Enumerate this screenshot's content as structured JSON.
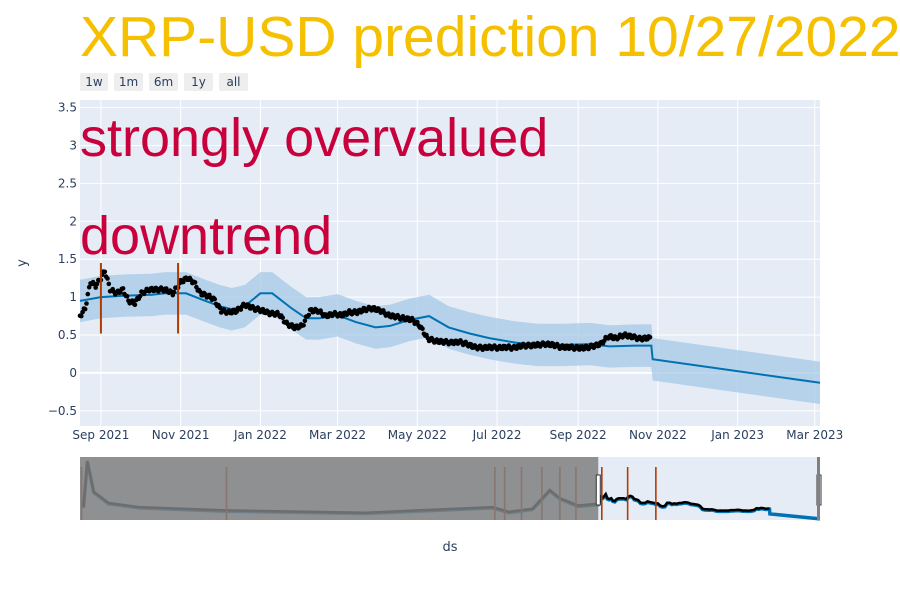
{
  "title": "XRP-USD prediction 10/27/2022",
  "annotations": [
    "strongly overvalued",
    "downtrend"
  ],
  "range_selector": [
    "1w",
    "1m",
    "6m",
    "1y",
    "all"
  ],
  "colors": {
    "title": "#f5c000",
    "annotation": "#c8003c",
    "plot_bg": "#e5ecf6",
    "band": "#a6c8e6",
    "forecast": "#0072b2",
    "actual": "#000000",
    "changepoint": "#b23c00",
    "rangeslider_mask": "#808080"
  },
  "chart_data": {
    "type": "line",
    "title": "XRP-USD prediction 10/27/2022",
    "xlabel": "ds",
    "ylabel": "y",
    "x_range": [
      "2021-08-16",
      "2023-03-05"
    ],
    "ylim": [
      -0.7,
      3.6
    ],
    "x_ticks": [
      {
        "date": "2021-09-01",
        "label": "Sep 2021"
      },
      {
        "date": "2021-11-01",
        "label": "Nov 2021"
      },
      {
        "date": "2022-01-01",
        "label": "Jan 2022"
      },
      {
        "date": "2022-03-01",
        "label": "Mar 2022"
      },
      {
        "date": "2022-05-01",
        "label": "May 2022"
      },
      {
        "date": "2022-07-01",
        "label": "Jul 2022"
      },
      {
        "date": "2022-09-01",
        "label": "Sep 2022"
      },
      {
        "date": "2022-11-01",
        "label": "Nov 2022"
      },
      {
        "date": "2023-01-01",
        "label": "Jan 2023"
      },
      {
        "date": "2023-03-01",
        "label": "Mar 2023"
      }
    ],
    "y_ticks": [
      {
        "value": 3.5,
        "label": "3.5"
      },
      {
        "value": 3,
        "label": "3"
      },
      {
        "value": 2.5,
        "label": "2.5"
      },
      {
        "value": 2,
        "label": "2"
      },
      {
        "value": 1.5,
        "label": "1.5"
      },
      {
        "value": 1,
        "label": "1"
      },
      {
        "value": 0.5,
        "label": "0.5"
      },
      {
        "value": 0,
        "label": "0"
      },
      {
        "value": -0.5,
        "label": "−0.5"
      }
    ],
    "changepoints": [
      "2021-09-01",
      "2021-10-30"
    ],
    "rangeslider_changepoints": [
      "2018-01-05",
      "2019-01-10",
      "2020-11-25",
      "2020-12-20",
      "2021-02-01",
      "2021-03-25",
      "2021-05-10",
      "2021-06-20",
      "2021-10-30",
      "2021-08-25",
      "2022-01-10"
    ],
    "series": [
      {
        "kind": "forecast",
        "points": [
          [
            "2021-08-16",
            0.95
          ],
          [
            "2021-09-01",
            1.0
          ],
          [
            "2021-09-20",
            1.02
          ],
          [
            "2021-10-10",
            1.03
          ],
          [
            "2021-10-20",
            1.05
          ],
          [
            "2021-11-05",
            1.05
          ],
          [
            "2021-11-20",
            0.95
          ],
          [
            "2021-12-01",
            0.88
          ],
          [
            "2021-12-10",
            0.84
          ],
          [
            "2021-12-20",
            0.88
          ],
          [
            "2022-01-01",
            1.05
          ],
          [
            "2022-01-10",
            1.05
          ],
          [
            "2022-01-25",
            0.85
          ],
          [
            "2022-02-05",
            0.72
          ],
          [
            "2022-02-15",
            0.72
          ],
          [
            "2022-03-01",
            0.76
          ],
          [
            "2022-03-15",
            0.67
          ],
          [
            "2022-03-30",
            0.6
          ],
          [
            "2022-04-10",
            0.62
          ],
          [
            "2022-04-25",
            0.7
          ],
          [
            "2022-05-10",
            0.75
          ],
          [
            "2022-05-25",
            0.6
          ],
          [
            "2022-06-10",
            0.52
          ],
          [
            "2022-06-25",
            0.46
          ],
          [
            "2022-07-15",
            0.4
          ],
          [
            "2022-08-01",
            0.37
          ],
          [
            "2022-08-20",
            0.37
          ],
          [
            "2022-09-10",
            0.38
          ],
          [
            "2022-09-25",
            0.35
          ],
          [
            "2022-10-15",
            0.36
          ],
          [
            "2022-10-27",
            0.36
          ],
          [
            "2022-10-28",
            0.18
          ],
          [
            "2023-03-05",
            -0.13
          ]
        ]
      },
      {
        "kind": "actual",
        "points": [
          [
            "2021-08-16",
            0.75
          ],
          [
            "2021-08-20",
            0.85
          ],
          [
            "2021-08-24",
            1.2
          ],
          [
            "2021-08-28",
            1.15
          ],
          [
            "2021-09-01",
            1.25
          ],
          [
            "2021-09-04",
            1.35
          ],
          [
            "2021-09-08",
            1.1
          ],
          [
            "2021-09-13",
            1.05
          ],
          [
            "2021-09-18",
            1.1
          ],
          [
            "2021-09-22",
            0.95
          ],
          [
            "2021-09-27",
            0.92
          ],
          [
            "2021-10-02",
            1.05
          ],
          [
            "2021-10-08",
            1.1
          ],
          [
            "2021-10-14",
            1.1
          ],
          [
            "2021-10-20",
            1.1
          ],
          [
            "2021-10-26",
            1.05
          ],
          [
            "2021-11-01",
            1.2
          ],
          [
            "2021-11-06",
            1.25
          ],
          [
            "2021-11-11",
            1.2
          ],
          [
            "2021-11-16",
            1.05
          ],
          [
            "2021-11-21",
            1.02
          ],
          [
            "2021-11-26",
            0.98
          ],
          [
            "2021-12-02",
            0.82
          ],
          [
            "2021-12-08",
            0.8
          ],
          [
            "2021-12-14",
            0.82
          ],
          [
            "2021-12-20",
            0.9
          ],
          [
            "2021-12-27",
            0.85
          ],
          [
            "2022-01-03",
            0.82
          ],
          [
            "2022-01-09",
            0.78
          ],
          [
            "2022-01-15",
            0.78
          ],
          [
            "2022-01-21",
            0.65
          ],
          [
            "2022-01-27",
            0.6
          ],
          [
            "2022-02-02",
            0.62
          ],
          [
            "2022-02-08",
            0.82
          ],
          [
            "2022-02-14",
            0.82
          ],
          [
            "2022-02-20",
            0.75
          ],
          [
            "2022-02-26",
            0.78
          ],
          [
            "2022-03-04",
            0.76
          ],
          [
            "2022-03-10",
            0.8
          ],
          [
            "2022-03-16",
            0.8
          ],
          [
            "2022-03-22",
            0.84
          ],
          [
            "2022-03-28",
            0.85
          ],
          [
            "2022-04-03",
            0.82
          ],
          [
            "2022-04-09",
            0.76
          ],
          [
            "2022-04-15",
            0.74
          ],
          [
            "2022-04-21",
            0.72
          ],
          [
            "2022-04-27",
            0.7
          ],
          [
            "2022-05-03",
            0.62
          ],
          [
            "2022-05-09",
            0.45
          ],
          [
            "2022-05-15",
            0.42
          ],
          [
            "2022-05-21",
            0.41
          ],
          [
            "2022-05-27",
            0.4
          ],
          [
            "2022-06-02",
            0.41
          ],
          [
            "2022-06-08",
            0.38
          ],
          [
            "2022-06-14",
            0.34
          ],
          [
            "2022-06-20",
            0.33
          ],
          [
            "2022-06-26",
            0.34
          ],
          [
            "2022-07-02",
            0.33
          ],
          [
            "2022-07-08",
            0.34
          ],
          [
            "2022-07-14",
            0.33
          ],
          [
            "2022-07-20",
            0.36
          ],
          [
            "2022-07-26",
            0.36
          ],
          [
            "2022-08-01",
            0.37
          ],
          [
            "2022-08-07",
            0.38
          ],
          [
            "2022-08-13",
            0.37
          ],
          [
            "2022-08-19",
            0.34
          ],
          [
            "2022-08-25",
            0.34
          ],
          [
            "2022-08-31",
            0.33
          ],
          [
            "2022-09-06",
            0.33
          ],
          [
            "2022-09-12",
            0.35
          ],
          [
            "2022-09-18",
            0.38
          ],
          [
            "2022-09-24",
            0.48
          ],
          [
            "2022-09-30",
            0.46
          ],
          [
            "2022-10-06",
            0.5
          ],
          [
            "2022-10-12",
            0.48
          ],
          [
            "2022-10-18",
            0.45
          ],
          [
            "2022-10-24",
            0.46
          ],
          [
            "2022-10-27",
            0.46
          ]
        ]
      }
    ]
  }
}
